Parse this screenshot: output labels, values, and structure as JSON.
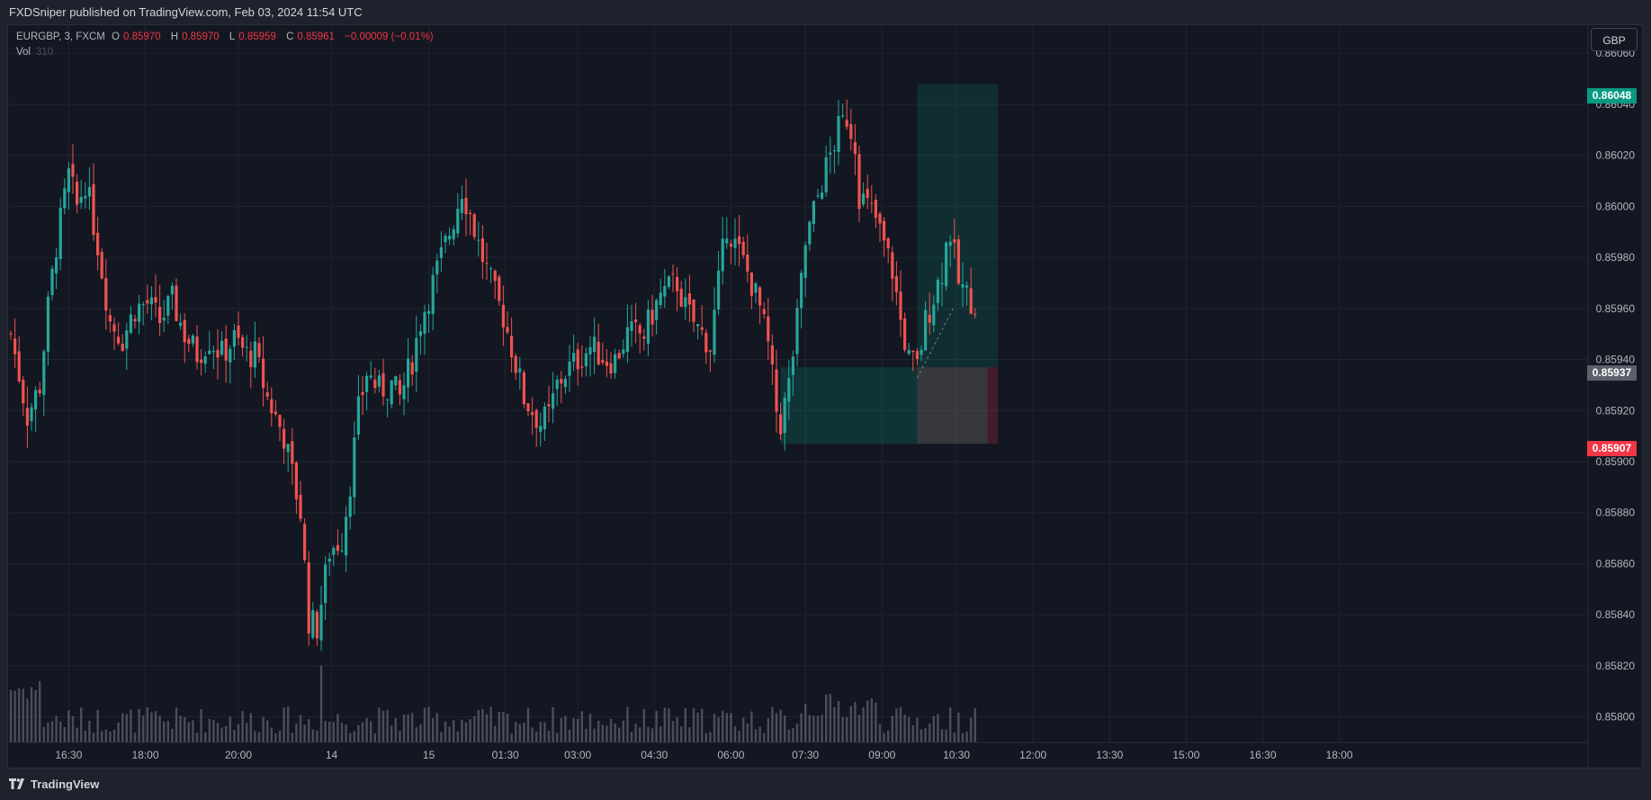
{
  "header": {
    "published": "FXDSniper published on TradingView.com, Feb 03, 2024 11:54 UTC"
  },
  "legend": {
    "symbol": "EURGBP, 3, FXCM",
    "open_label": "O",
    "open": "0.85970",
    "high_label": "H",
    "high": "0.85970",
    "low_label": "L",
    "low": "0.85959",
    "close_label": "C",
    "close": "0.85961",
    "change": "−0.00009 (−0.01%)",
    "vol_label": "Vol",
    "vol_value": "310"
  },
  "currency_button": "GBP",
  "price_tags": {
    "target": "0.86048",
    "entry": "0.85937",
    "stop": "0.85907"
  },
  "footer": {
    "brand": "TradingView"
  },
  "colors": {
    "background": "#131722",
    "grid": "#1f2430",
    "up": "#26a69a",
    "down": "#ef5350",
    "volume": "#787b86",
    "target_tag": "#089981",
    "stop_tag": "#f23645",
    "entry_tag": "#5d606b"
  },
  "chart_data": {
    "type": "candlestick",
    "symbol": "EURGBP",
    "timeframe": "3",
    "yaxis_ticks": [
      "0.86060",
      "0.86040",
      "0.86020",
      "0.86000",
      "0.85980",
      "0.85960",
      "0.85940",
      "0.85920",
      "0.85900",
      "0.85880",
      "0.85860",
      "0.85840",
      "0.85820",
      "0.85800"
    ],
    "xaxis_ticks": [
      "16:30",
      "18:00",
      "20:00",
      "14",
      "15",
      "01:30",
      "03:00",
      "04:30",
      "06:00",
      "07:30",
      "09:00",
      "10:30",
      "12:00",
      "13:30",
      "15:00",
      "16:30",
      "18:00"
    ],
    "ylim": [
      0.8579,
      0.86071
    ],
    "grid": true,
    "price_path": [
      [
        0,
        0.8595
      ],
      [
        4,
        0.85918
      ],
      [
        7,
        0.8593
      ],
      [
        9,
        0.8596
      ],
      [
        11,
        0.85985
      ],
      [
        14,
        0.86012
      ],
      [
        16,
        0.86
      ],
      [
        18,
        0.8601
      ],
      [
        21,
        0.85985
      ],
      [
        24,
        0.85955
      ],
      [
        27,
        0.85948
      ],
      [
        30,
        0.8596
      ],
      [
        33,
        0.85962
      ],
      [
        36,
        0.85955
      ],
      [
        39,
        0.85963
      ],
      [
        42,
        0.8595
      ],
      [
        45,
        0.85942
      ],
      [
        48,
        0.85948
      ],
      [
        51,
        0.85942
      ],
      [
        54,
        0.85948
      ],
      [
        57,
        0.85942
      ],
      [
        59,
        0.85942
      ],
      [
        62,
        0.85925
      ],
      [
        66,
        0.8591
      ],
      [
        70,
        0.8588
      ],
      [
        72,
        0.85838
      ],
      [
        74,
        0.85835
      ],
      [
        77,
        0.85865
      ],
      [
        80,
        0.8587
      ],
      [
        82,
        0.85892
      ],
      [
        84,
        0.8592
      ],
      [
        86,
        0.85935
      ],
      [
        89,
        0.85928
      ],
      [
        92,
        0.8593
      ],
      [
        94,
        0.85925
      ],
      [
        97,
        0.8594
      ],
      [
        99,
        0.85955
      ],
      [
        101,
        0.85965
      ],
      [
        103,
        0.85975
      ],
      [
        105,
        0.85985
      ],
      [
        107,
        0.85995
      ],
      [
        109,
        0.86007
      ],
      [
        111,
        0.85997
      ],
      [
        113,
        0.85985
      ],
      [
        115,
        0.85975
      ],
      [
        117,
        0.85965
      ],
      [
        119,
        0.85957
      ],
      [
        121,
        0.85945
      ],
      [
        124,
        0.85925
      ],
      [
        126,
        0.8592
      ],
      [
        128,
        0.85915
      ],
      [
        130,
        0.85918
      ],
      [
        132,
        0.8593
      ],
      [
        134,
        0.85935
      ],
      [
        137,
        0.8594
      ],
      [
        140,
        0.85945
      ],
      [
        144,
        0.8594
      ],
      [
        146,
        0.8594
      ],
      [
        149,
        0.8595
      ],
      [
        153,
        0.8595
      ],
      [
        155,
        0.85958
      ],
      [
        157,
        0.85965
      ],
      [
        159,
        0.85968
      ],
      [
        161,
        0.8597
      ],
      [
        163,
        0.8596
      ],
      [
        166,
        0.85952
      ],
      [
        168,
        0.85948
      ],
      [
        169,
        0.85945
      ],
      [
        171,
        0.8597
      ],
      [
        173,
        0.85993
      ],
      [
        175,
        0.85985
      ],
      [
        177,
        0.85978
      ],
      [
        179,
        0.8597
      ],
      [
        181,
        0.8596
      ],
      [
        183,
        0.85945
      ],
      [
        185,
        0.8592
      ],
      [
        186,
        0.85915
      ],
      [
        188,
        0.8593
      ],
      [
        190,
        0.85955
      ],
      [
        192,
        0.85985
      ],
      [
        194,
        0.85998
      ],
      [
        196,
        0.8601
      ],
      [
        198,
        0.8602
      ],
      [
        200,
        0.8603
      ],
      [
        202,
        0.86035
      ],
      [
        204,
        0.86025
      ],
      [
        205,
        0.86005
      ],
      [
        207,
        0.86
      ],
      [
        209,
        0.85995
      ],
      [
        211,
        0.85985
      ],
      [
        213,
        0.85975
      ],
      [
        215,
        0.85955
      ],
      [
        217,
        0.8594
      ],
      [
        219,
        0.85937
      ],
      [
        221,
        0.85955
      ],
      [
        223,
        0.85965
      ],
      [
        225,
        0.85975
      ],
      [
        226,
        0.85985
      ],
      [
        227,
        0.8599
      ],
      [
        229,
        0.8597
      ],
      [
        231,
        0.85965
      ],
      [
        233,
        0.85962
      ]
    ]
  },
  "position_tool": {
    "direction": "long",
    "entry": 0.85937,
    "target": 0.86048,
    "stop": 0.85907
  }
}
